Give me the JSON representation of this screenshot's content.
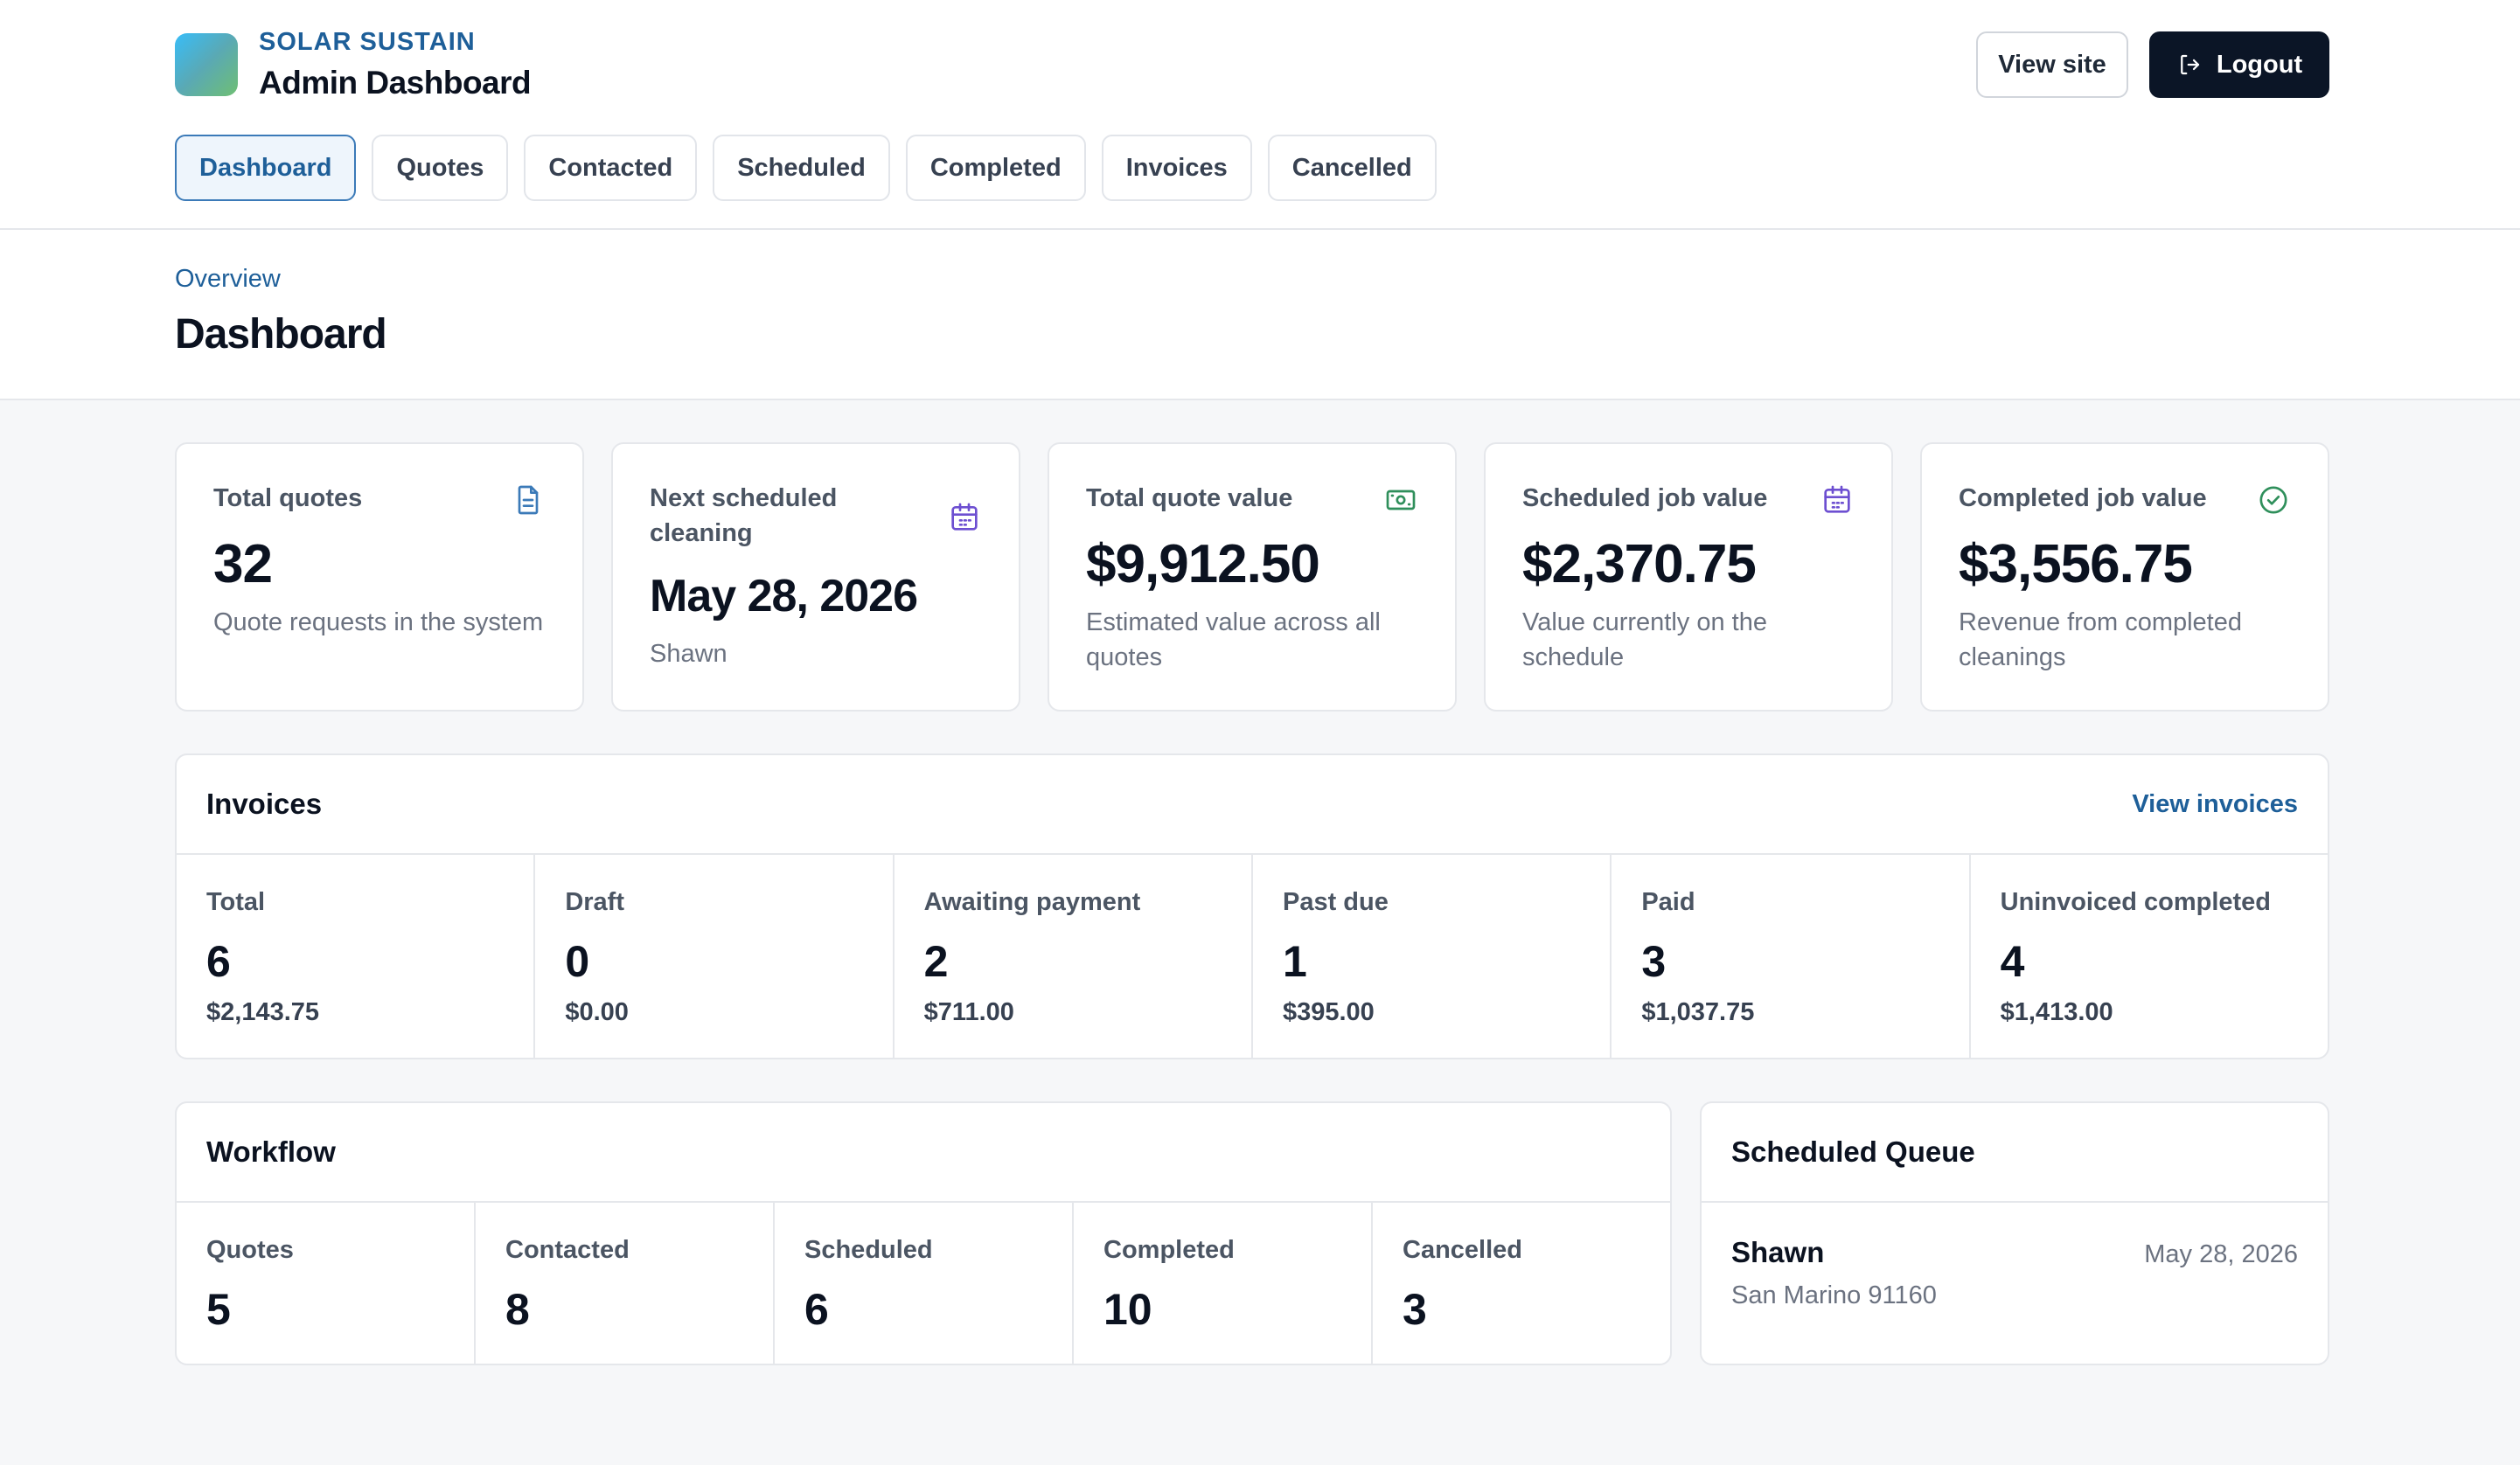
{
  "brand": {
    "name": "SOLAR SUSTAIN",
    "subtitle": "Admin Dashboard"
  },
  "header": {
    "view_site_label": "View site",
    "logout_label": "Logout"
  },
  "tabs": [
    {
      "label": "Dashboard",
      "active": true
    },
    {
      "label": "Quotes"
    },
    {
      "label": "Contacted"
    },
    {
      "label": "Scheduled"
    },
    {
      "label": "Completed"
    },
    {
      "label": "Invoices"
    },
    {
      "label": "Cancelled"
    }
  ],
  "page": {
    "breadcrumb": "Overview",
    "title": "Dashboard"
  },
  "stats": [
    {
      "label": "Total quotes",
      "value": "32",
      "desc": "Quote requests in the system",
      "icon": "document-icon"
    },
    {
      "label": "Next scheduled cleaning",
      "value": "May 28, 2026",
      "desc": "Shawn",
      "icon": "calendar-icon"
    },
    {
      "label": "Total quote value",
      "value": "$9,912.50",
      "desc": "Estimated value across all quotes",
      "icon": "cash-icon"
    },
    {
      "label": "Scheduled job value",
      "value": "$2,370.75",
      "desc": "Value currently on the schedule",
      "icon": "calendar-icon"
    },
    {
      "label": "Completed job value",
      "value": "$3,556.75",
      "desc": "Revenue from completed cleanings",
      "icon": "check-circle-icon"
    }
  ],
  "invoices": {
    "title": "Invoices",
    "link": "View invoices",
    "cells": [
      {
        "label": "Total",
        "count": "6",
        "amount": "$2,143.75"
      },
      {
        "label": "Draft",
        "count": "0",
        "amount": "$0.00"
      },
      {
        "label": "Awaiting payment",
        "count": "2",
        "amount": "$711.00"
      },
      {
        "label": "Past due",
        "count": "1",
        "amount": "$395.00"
      },
      {
        "label": "Paid",
        "count": "3",
        "amount": "$1,037.75"
      },
      {
        "label": "Uninvoiced completed",
        "count": "4",
        "amount": "$1,413.00"
      }
    ]
  },
  "workflow": {
    "title": "Workflow",
    "cells": [
      {
        "label": "Quotes",
        "count": "5"
      },
      {
        "label": "Contacted",
        "count": "8"
      },
      {
        "label": "Scheduled",
        "count": "6"
      },
      {
        "label": "Completed",
        "count": "10"
      },
      {
        "label": "Cancelled",
        "count": "3"
      }
    ]
  },
  "queue": {
    "title": "Scheduled Queue",
    "items": [
      {
        "name": "Shawn",
        "date": "May 28, 2026",
        "address": "San Marino 91160"
      }
    ]
  },
  "colors": {
    "accent": "#1e5f99",
    "dark_button": "#0b1526",
    "icon_document": "#3b7ab8",
    "icon_calendar": "#6d4fd1",
    "icon_cash": "#2f8f5b",
    "icon_check": "#2f8f5b"
  }
}
